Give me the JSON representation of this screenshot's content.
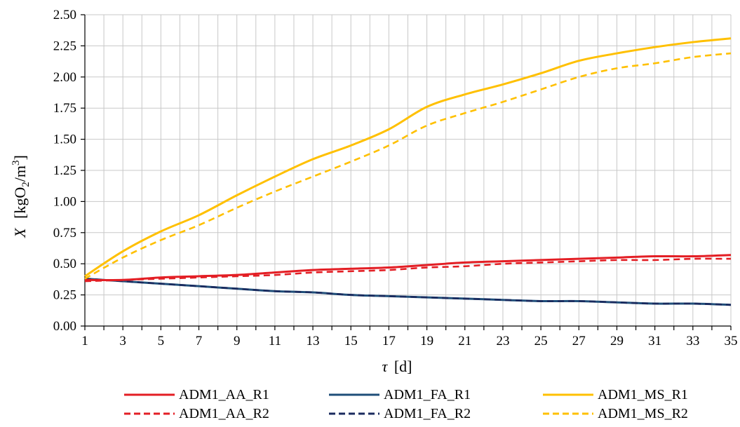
{
  "chart_data": {
    "type": "line",
    "title": "",
    "xlabel": "τ [d]",
    "ylabel": "X [kgO2/m3]",
    "ylabel_parts": {
      "var": "X",
      "unit_open": "[kgO",
      "sub": "2",
      "mid": "/m",
      "sup": "3",
      "close": "]"
    },
    "xlabel_parts": {
      "var": "τ",
      "unit": "[d]"
    },
    "xlim": [
      1,
      35
    ],
    "ylim": [
      0,
      2.5
    ],
    "x_ticks": [
      "1",
      "3",
      "5",
      "7",
      "9",
      "11",
      "13",
      "15",
      "17",
      "19",
      "21",
      "23",
      "25",
      "27",
      "29",
      "31",
      "33",
      "35"
    ],
    "y_ticks": [
      "0.00",
      "0.25",
      "0.50",
      "0.75",
      "1.00",
      "1.25",
      "1.50",
      "1.75",
      "2.00",
      "2.25",
      "2.50"
    ],
    "grid": true,
    "legend_position": "bottom",
    "x": [
      1,
      3,
      5,
      7,
      9,
      11,
      13,
      15,
      17,
      19,
      21,
      23,
      25,
      27,
      29,
      31,
      33,
      35
    ],
    "series": [
      {
        "name": "ADM1_AA_R1",
        "color": "#e31e24",
        "dash": "solid",
        "values": [
          0.37,
          0.37,
          0.39,
          0.4,
          0.41,
          0.43,
          0.45,
          0.46,
          0.47,
          0.49,
          0.51,
          0.52,
          0.53,
          0.54,
          0.55,
          0.56,
          0.56,
          0.57
        ]
      },
      {
        "name": "ADM1_FA_R1",
        "color": "#1f4e79",
        "dash": "solid",
        "values": [
          0.38,
          0.36,
          0.34,
          0.32,
          0.3,
          0.28,
          0.27,
          0.25,
          0.24,
          0.23,
          0.22,
          0.21,
          0.2,
          0.2,
          0.19,
          0.18,
          0.18,
          0.17
        ]
      },
      {
        "name": "ADM1_MS_R1",
        "color": "#ffc000",
        "dash": "solid",
        "values": [
          0.4,
          0.6,
          0.76,
          0.89,
          1.05,
          1.2,
          1.34,
          1.45,
          1.58,
          1.76,
          1.86,
          1.94,
          2.03,
          2.13,
          2.19,
          2.24,
          2.28,
          2.31
        ]
      },
      {
        "name": "ADM1_AA_R2",
        "color": "#e31e24",
        "dash": "dashed",
        "values": [
          0.36,
          0.37,
          0.38,
          0.39,
          0.4,
          0.41,
          0.43,
          0.44,
          0.45,
          0.47,
          0.48,
          0.5,
          0.51,
          0.52,
          0.53,
          0.53,
          0.54,
          0.54
        ]
      },
      {
        "name": "ADM1_FA_R2",
        "color": "#1a2a5e",
        "dash": "dashed",
        "values": [
          0.38,
          0.36,
          0.34,
          0.32,
          0.3,
          0.28,
          0.27,
          0.25,
          0.24,
          0.23,
          0.22,
          0.21,
          0.2,
          0.2,
          0.19,
          0.18,
          0.18,
          0.17
        ]
      },
      {
        "name": "ADM1_MS_R2",
        "color": "#ffc000",
        "dash": "dashed",
        "values": [
          0.38,
          0.55,
          0.69,
          0.81,
          0.95,
          1.08,
          1.2,
          1.32,
          1.45,
          1.61,
          1.71,
          1.8,
          1.9,
          2.0,
          2.07,
          2.11,
          2.16,
          2.19
        ]
      }
    ]
  }
}
